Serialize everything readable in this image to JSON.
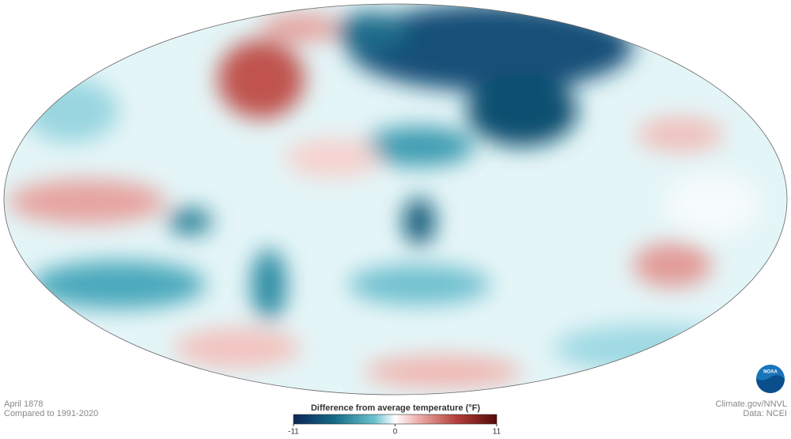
{
  "map": {
    "date": "April 1878",
    "baseline": "Compared to 1991-2020",
    "credit": "Climate.gov/NNVL",
    "source": "Data: NCEI",
    "logo": "NOAA"
  },
  "colorbar": {
    "title": "Difference from average temperature (°F)",
    "lim": [
      -11,
      11
    ],
    "ticks": [
      -11,
      0,
      11
    ]
  }
}
